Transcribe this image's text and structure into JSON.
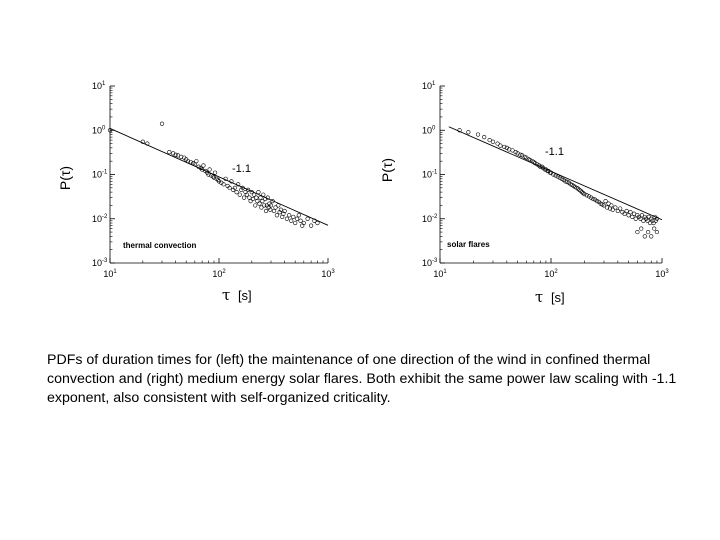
{
  "caption": "PDFs of duration times for (left) the maintenance of one direction of the wind in confined thermal convection and (right) medium energy solar flares.  Both exhibit the same power law scaling with -1.1 exponent, also consistent with self-organized criticality.",
  "chart_data": [
    {
      "type": "scatter",
      "x_scale": "log",
      "y_scale": "log",
      "xlim": [
        10,
        1000
      ],
      "ylim": [
        0.001,
        10
      ],
      "x_ticks": [
        {
          "value": 10,
          "base": "10",
          "exp": "1"
        },
        {
          "value": 100,
          "base": "10",
          "exp": "2"
        },
        {
          "value": 1000,
          "base": "10",
          "exp": "3"
        }
      ],
      "y_ticks": [
        {
          "value": 10,
          "base": "10",
          "exp": "1"
        },
        {
          "value": 1,
          "base": "10",
          "exp": "0"
        },
        {
          "value": 0.1,
          "base": "10",
          "exp": "-1"
        },
        {
          "value": 0.01,
          "base": "10",
          "exp": "-2"
        },
        {
          "value": 0.001,
          "base": "10",
          "exp": "-3"
        }
      ],
      "ylabel": "P(τ)",
      "xlabel_symbol": "τ",
      "xlabel_unit": "[s]",
      "panel_label": "thermal convection",
      "slope_label": "-1.1",
      "fit_line": {
        "x": [
          10,
          1000
        ],
        "y": [
          1.1,
          0.0071
        ]
      },
      "series": [
        {
          "x": [
            10,
            20,
            22,
            30,
            35,
            38,
            40,
            42,
            45,
            48,
            50,
            52,
            55,
            58,
            60,
            62,
            65,
            68,
            70,
            72,
            75,
            78,
            80,
            82,
            85,
            88,
            90,
            92,
            95,
            98,
            100,
            105,
            110,
            115,
            120,
            125,
            130,
            135,
            140,
            145,
            150,
            155,
            160,
            165,
            170,
            175,
            180,
            185,
            190,
            195,
            200,
            205,
            210,
            215,
            220,
            225,
            230,
            235,
            240,
            245,
            250,
            255,
            260,
            265,
            270,
            275,
            280,
            285,
            290,
            295,
            300,
            310,
            320,
            330,
            340,
            350,
            360,
            370,
            380,
            390,
            400,
            420,
            440,
            460,
            480,
            500,
            520,
            540,
            560,
            580,
            600,
            650,
            700,
            750,
            800
          ],
          "y": [
            1.0,
            0.55,
            0.5,
            1.4,
            0.32,
            0.3,
            0.28,
            0.27,
            0.25,
            0.24,
            0.22,
            0.2,
            0.19,
            0.18,
            0.17,
            0.2,
            0.15,
            0.14,
            0.13,
            0.16,
            0.12,
            0.11,
            0.1,
            0.13,
            0.095,
            0.09,
            0.085,
            0.11,
            0.08,
            0.075,
            0.07,
            0.065,
            0.06,
            0.08,
            0.055,
            0.05,
            0.07,
            0.045,
            0.05,
            0.04,
            0.06,
            0.035,
            0.045,
            0.05,
            0.03,
            0.04,
            0.035,
            0.045,
            0.03,
            0.025,
            0.04,
            0.028,
            0.035,
            0.02,
            0.03,
            0.025,
            0.04,
            0.022,
            0.03,
            0.018,
            0.025,
            0.035,
            0.02,
            0.028,
            0.015,
            0.02,
            0.03,
            0.018,
            0.022,
            0.016,
            0.02,
            0.025,
            0.015,
            0.018,
            0.012,
            0.02,
            0.014,
            0.016,
            0.011,
            0.013,
            0.015,
            0.01,
            0.012,
            0.009,
            0.011,
            0.008,
            0.01,
            0.012,
            0.009,
            0.007,
            0.008,
            0.01,
            0.007,
            0.009,
            0.008
          ]
        }
      ]
    },
    {
      "type": "scatter",
      "x_scale": "log",
      "y_scale": "log",
      "xlim": [
        10,
        1000
      ],
      "ylim": [
        0.001,
        10
      ],
      "x_ticks": [
        {
          "value": 10,
          "base": "10",
          "exp": "1"
        },
        {
          "value": 100,
          "base": "10",
          "exp": "2"
        },
        {
          "value": 1000,
          "base": "10",
          "exp": "3"
        }
      ],
      "y_ticks": [
        {
          "value": 10,
          "base": "10",
          "exp": "1"
        },
        {
          "value": 1,
          "base": "10",
          "exp": "0"
        },
        {
          "value": 0.1,
          "base": "10",
          "exp": "-1"
        },
        {
          "value": 0.01,
          "base": "10",
          "exp": "-2"
        },
        {
          "value": 0.001,
          "base": "10",
          "exp": "-3"
        }
      ],
      "ylabel": "P(τ)",
      "xlabel_symbol": "τ",
      "xlabel_unit": "[s]",
      "panel_label": "solar flares",
      "slope_label": "-1.1",
      "fit_line": {
        "x": [
          12,
          1000
        ],
        "y": [
          1.2,
          0.0095
        ]
      },
      "series": [
        {
          "x": [
            15,
            18,
            22,
            25,
            28,
            30,
            33,
            35,
            38,
            40,
            42,
            45,
            48,
            50,
            53,
            55,
            58,
            60,
            63,
            65,
            68,
            70,
            72,
            75,
            78,
            80,
            83,
            85,
            88,
            90,
            93,
            95,
            98,
            100,
            105,
            110,
            115,
            120,
            125,
            130,
            135,
            140,
            145,
            150,
            155,
            160,
            165,
            170,
            175,
            180,
            185,
            190,
            195,
            200,
            210,
            220,
            230,
            240,
            250,
            260,
            270,
            280,
            290,
            300,
            310,
            320,
            330,
            340,
            350,
            360,
            380,
            400,
            420,
            440,
            460,
            480,
            500,
            520,
            540,
            560,
            580,
            600,
            620,
            640,
            660,
            680,
            700,
            720,
            740,
            760,
            780,
            800,
            820,
            840,
            860,
            880,
            900,
            600,
            650,
            700,
            750,
            800,
            850,
            900
          ],
          "y": [
            1.0,
            0.9,
            0.8,
            0.7,
            0.6,
            0.55,
            0.5,
            0.45,
            0.42,
            0.4,
            0.37,
            0.35,
            0.32,
            0.3,
            0.28,
            0.27,
            0.25,
            0.24,
            0.22,
            0.21,
            0.2,
            0.19,
            0.18,
            0.17,
            0.16,
            0.15,
            0.15,
            0.14,
            0.13,
            0.13,
            0.12,
            0.12,
            0.11,
            0.11,
            0.1,
            0.095,
            0.09,
            0.085,
            0.08,
            0.075,
            0.07,
            0.068,
            0.065,
            0.06,
            0.058,
            0.055,
            0.052,
            0.05,
            0.048,
            0.045,
            0.043,
            0.04,
            0.038,
            0.036,
            0.034,
            0.032,
            0.03,
            0.028,
            0.027,
            0.025,
            0.024,
            0.022,
            0.021,
            0.02,
            0.025,
            0.018,
            0.022,
            0.017,
            0.02,
            0.016,
            0.018,
            0.015,
            0.017,
            0.014,
            0.013,
            0.015,
            0.012,
            0.014,
            0.011,
            0.013,
            0.01,
            0.012,
            0.011,
            0.01,
            0.012,
            0.009,
            0.011,
            0.01,
            0.009,
            0.011,
            0.008,
            0.01,
            0.009,
            0.008,
            0.011,
            0.009,
            0.01,
            0.005,
            0.006,
            0.004,
            0.005,
            0.004,
            0.006,
            0.005
          ]
        }
      ]
    }
  ]
}
